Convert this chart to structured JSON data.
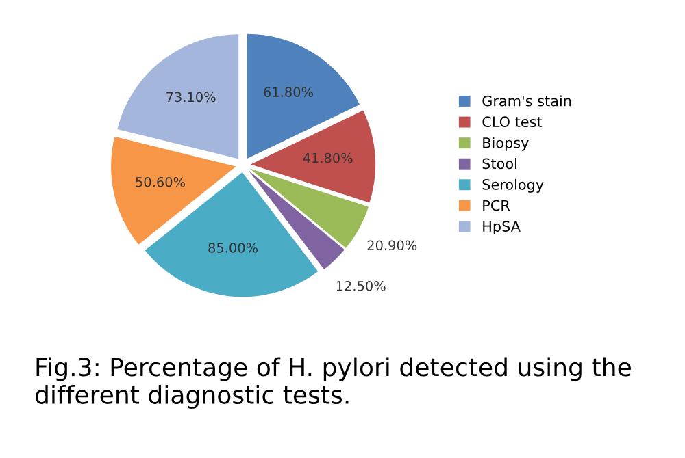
{
  "chart_data": {
    "type": "pie",
    "categories": [
      "Gram's stain",
      "CLO test",
      "Biopsy",
      "Stool",
      "Serology",
      "PCR",
      "HpSA"
    ],
    "values": [
      61.8,
      41.8,
      20.9,
      12.5,
      85.0,
      50.6,
      73.1
    ],
    "value_labels": [
      "61.80%",
      "41.80%",
      "20.90%",
      "12.50%",
      "85.00%",
      "50.60%",
      "73.10%"
    ],
    "colors": [
      "#4f81bd",
      "#c0504d",
      "#9bbb59",
      "#8064a2",
      "#4bacc6",
      "#f79646",
      "#a5b6dc"
    ],
    "legend": "right",
    "annotations": [
      "Fig.3: Percentage of H. pylori detected using the different diagnostic tests."
    ]
  }
}
